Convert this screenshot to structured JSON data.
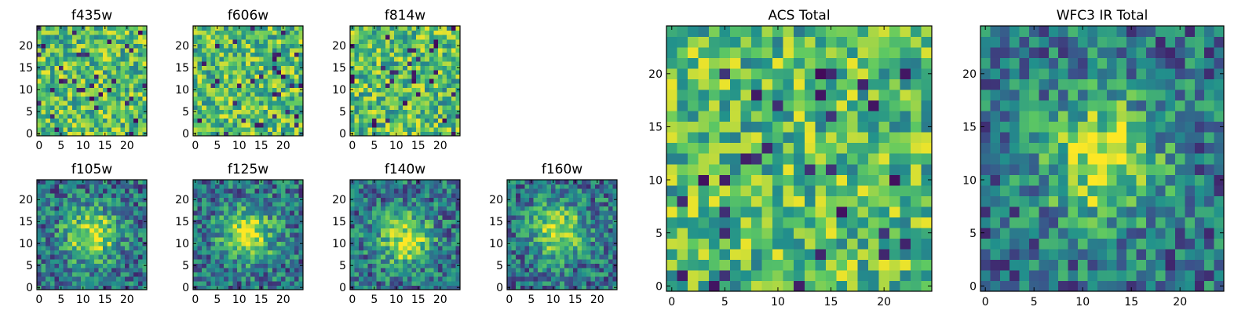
{
  "figure": {
    "background": "#ffffff",
    "frame_color": "#000000",
    "colormap": "viridis"
  },
  "colormap_stops": [
    "#440154",
    "#3b528b",
    "#21918c",
    "#5ec962",
    "#fde725"
  ],
  "chart_data": [
    {
      "type": "heatmap",
      "title": "f435w",
      "grid_size": 25,
      "pattern": "noise",
      "xticks": [
        "0",
        "5",
        "10",
        "15",
        "20"
      ],
      "yticks": [
        "0",
        "5",
        "10",
        "15",
        "20"
      ],
      "xlim": [
        -0.5,
        24.5
      ],
      "ylim": [
        -0.5,
        24.5
      ]
    },
    {
      "type": "heatmap",
      "title": "f606w",
      "grid_size": 25,
      "pattern": "noise",
      "xticks": [
        "0",
        "5",
        "10",
        "15",
        "20"
      ],
      "yticks": [
        "0",
        "5",
        "10",
        "15",
        "20"
      ],
      "xlim": [
        -0.5,
        24.5
      ],
      "ylim": [
        -0.5,
        24.5
      ]
    },
    {
      "type": "heatmap",
      "title": "f814w",
      "grid_size": 25,
      "pattern": "noise",
      "xticks": [
        "0",
        "5",
        "10",
        "15",
        "20"
      ],
      "yticks": [
        "0",
        "5",
        "10",
        "15",
        "20"
      ],
      "xlim": [
        -0.5,
        24.5
      ],
      "ylim": [
        -0.5,
        24.5
      ]
    },
    {
      "type": "heatmap",
      "title": "f105w",
      "grid_size": 25,
      "pattern": "source",
      "source_center": [
        12,
        12
      ],
      "xticks": [
        "0",
        "5",
        "10",
        "15",
        "20"
      ],
      "yticks": [
        "0",
        "5",
        "10",
        "15",
        "20"
      ],
      "xlim": [
        -0.5,
        24.5
      ],
      "ylim": [
        -0.5,
        24.5
      ]
    },
    {
      "type": "heatmap",
      "title": "f125w",
      "grid_size": 25,
      "pattern": "source",
      "source_center": [
        12,
        12
      ],
      "xticks": [
        "0",
        "5",
        "10",
        "15",
        "20"
      ],
      "yticks": [
        "0",
        "5",
        "10",
        "15",
        "20"
      ],
      "xlim": [
        -0.5,
        24.5
      ],
      "ylim": [
        -0.5,
        24.5
      ]
    },
    {
      "type": "heatmap",
      "title": "f140w",
      "grid_size": 25,
      "pattern": "source",
      "source_center": [
        12,
        11
      ],
      "xticks": [
        "0",
        "5",
        "10",
        "15",
        "20"
      ],
      "yticks": [
        "0",
        "5",
        "10",
        "15",
        "20"
      ],
      "xlim": [
        -0.5,
        24.5
      ],
      "ylim": [
        -0.5,
        24.5
      ]
    },
    {
      "type": "heatmap",
      "title": "f160w",
      "grid_size": 25,
      "pattern": "source",
      "source_center": [
        11,
        13
      ],
      "xticks": [
        "0",
        "5",
        "10",
        "15",
        "20"
      ],
      "yticks": [
        "0",
        "5",
        "10",
        "15",
        "20"
      ],
      "xlim": [
        -0.5,
        24.5
      ],
      "ylim": [
        -0.5,
        24.5
      ]
    },
    {
      "type": "heatmap",
      "title": "ACS Total",
      "grid_size": 25,
      "pattern": "noise",
      "xticks": [
        "0",
        "5",
        "10",
        "15",
        "20"
      ],
      "yticks": [
        "0",
        "5",
        "10",
        "15",
        "20"
      ],
      "xlim": [
        -0.5,
        24.5
      ],
      "ylim": [
        -0.5,
        24.5
      ]
    },
    {
      "type": "heatmap",
      "title": "WFC3 IR Total",
      "grid_size": 25,
      "pattern": "source",
      "source_center": [
        12,
        12
      ],
      "xticks": [
        "0",
        "5",
        "10",
        "15",
        "20"
      ],
      "yticks": [
        "0",
        "5",
        "10",
        "15",
        "20"
      ],
      "xlim": [
        -0.5,
        24.5
      ],
      "ylim": [
        -0.5,
        24.5
      ]
    }
  ]
}
